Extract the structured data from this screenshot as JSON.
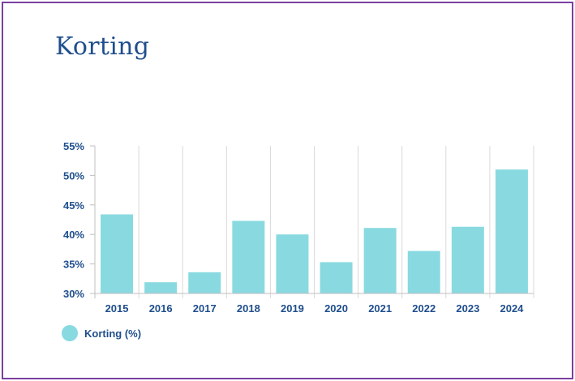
{
  "title": "Korting",
  "colors": {
    "frame": "#7b3fa0",
    "title": "#1f4e8c",
    "bar": "#89dae0",
    "axis_text": "#1f4e8c",
    "grid": "#d9d9d9"
  },
  "chart_data": {
    "type": "bar",
    "title": "",
    "xlabel": "",
    "ylabel": "",
    "categories": [
      "2015",
      "2016",
      "2017",
      "2018",
      "2019",
      "2020",
      "2021",
      "2022",
      "2023",
      "2024"
    ],
    "series": [
      {
        "name": "Korting (%)",
        "values": [
          43.4,
          31.9,
          33.6,
          42.3,
          40.0,
          35.3,
          41.1,
          37.2,
          41.3,
          51.0
        ]
      }
    ],
    "ylim": [
      30,
      55
    ],
    "yticks": [
      30,
      35,
      40,
      45,
      50,
      55
    ],
    "ytick_labels": [
      "30%",
      "35%",
      "40%",
      "45%",
      "50%",
      "55%"
    ],
    "grid": "vertical",
    "legend": "bottom-left"
  }
}
